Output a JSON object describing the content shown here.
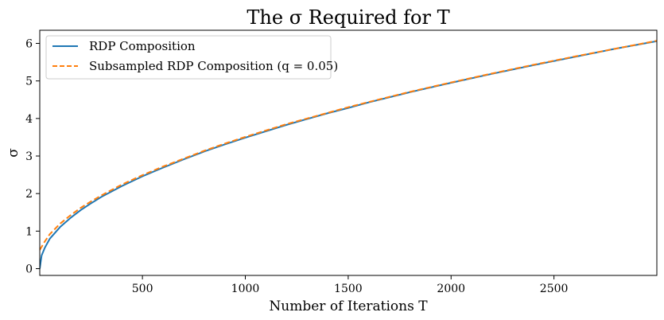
{
  "chart_data": {
    "type": "line",
    "title": "The σ Required for T",
    "xlabel": "Number of Iterations T",
    "ylabel": "σ",
    "xlim": [
      1,
      3000
    ],
    "ylim": [
      -0.18,
      6.35
    ],
    "xticks": [
      500,
      1000,
      1500,
      2000,
      2500
    ],
    "yticks": [
      0,
      1,
      2,
      3,
      4,
      5,
      6
    ],
    "grid": false,
    "legend_position": "top-left",
    "series": [
      {
        "name": "RDP Composition",
        "color": "#1f77b4",
        "style": "solid",
        "points": [
          [
            1,
            0.0
          ],
          [
            10,
            0.35
          ],
          [
            25,
            0.55
          ],
          [
            50,
            0.8
          ],
          [
            100,
            1.11
          ],
          [
            150,
            1.35
          ],
          [
            200,
            1.56
          ],
          [
            250,
            1.74
          ],
          [
            300,
            1.91
          ],
          [
            400,
            2.2
          ],
          [
            500,
            2.46
          ],
          [
            600,
            2.69
          ],
          [
            700,
            2.91
          ],
          [
            800,
            3.12
          ],
          [
            900,
            3.31
          ],
          [
            1000,
            3.49
          ],
          [
            1200,
            3.83
          ],
          [
            1400,
            4.14
          ],
          [
            1500,
            4.28
          ],
          [
            1600,
            4.43
          ],
          [
            1800,
            4.7
          ],
          [
            2000,
            4.95
          ],
          [
            2200,
            5.19
          ],
          [
            2400,
            5.42
          ],
          [
            2500,
            5.53
          ],
          [
            2600,
            5.64
          ],
          [
            2800,
            5.86
          ],
          [
            3000,
            6.06
          ]
        ]
      },
      {
        "name": "Subsampled RDP Composition (q = 0.05)",
        "color": "#ff7f0e",
        "style": "dashed",
        "points": [
          [
            1,
            0.5
          ],
          [
            10,
            0.58
          ],
          [
            25,
            0.72
          ],
          [
            50,
            0.92
          ],
          [
            100,
            1.2
          ],
          [
            150,
            1.42
          ],
          [
            200,
            1.62
          ],
          [
            250,
            1.79
          ],
          [
            300,
            1.95
          ],
          [
            400,
            2.24
          ],
          [
            500,
            2.49
          ],
          [
            600,
            2.72
          ],
          [
            700,
            2.93
          ],
          [
            800,
            3.14
          ],
          [
            900,
            3.33
          ],
          [
            1000,
            3.51
          ],
          [
            1200,
            3.85
          ],
          [
            1400,
            4.15
          ],
          [
            1500,
            4.3
          ],
          [
            1600,
            4.44
          ],
          [
            1800,
            4.71
          ],
          [
            2000,
            4.96
          ],
          [
            2200,
            5.2
          ],
          [
            2400,
            5.43
          ],
          [
            2500,
            5.54
          ],
          [
            2600,
            5.65
          ],
          [
            2800,
            5.86
          ],
          [
            3000,
            6.07
          ]
        ]
      }
    ]
  }
}
